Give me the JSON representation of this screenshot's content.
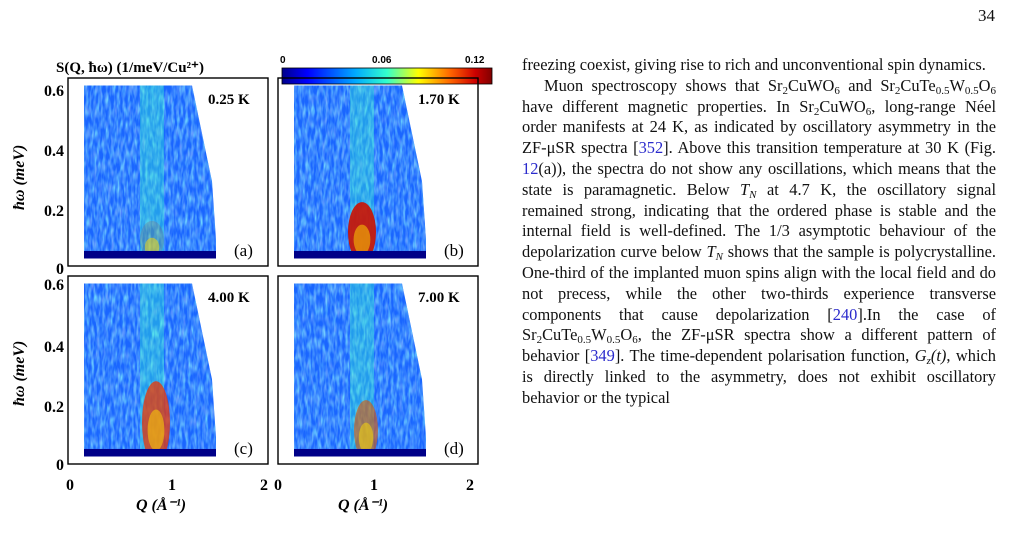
{
  "page_number": "34",
  "figure": {
    "title": "S(Q, ħω) (1/meV/Cu²⁺)",
    "colorbar": {
      "ticks": [
        "0",
        "0.06",
        "0.12"
      ],
      "colors": [
        "#00008b",
        "#0000ff",
        "#00aaff",
        "#33ffcc",
        "#ffff00",
        "#ff6600",
        "#cc0000",
        "#800000"
      ]
    },
    "y_axis_label": "ħω (meV)",
    "x_axis_label": "Q (Å⁻¹)",
    "y_ticks": [
      "0",
      "0.2",
      "0.4",
      "0.6"
    ],
    "x_ticks": [
      "0",
      "1",
      "2"
    ],
    "panels": [
      {
        "letter": "(a)",
        "temperature": "0.25 K"
      },
      {
        "letter": "(b)",
        "temperature": "1.70 K"
      },
      {
        "letter": "(c)",
        "temperature": "4.00 K"
      },
      {
        "letter": "(d)",
        "temperature": "7.00 K"
      }
    ]
  },
  "text": {
    "p1": "freezing coexist, giving rise to rich and unconventional spin dynamics.",
    "p2_a": "Muon spectroscopy shows that Sr",
    "p2_b": "CuWO",
    "p2_c": " and Sr",
    "p2_d": "CuTe",
    "p2_e": "W",
    "p2_f": "O",
    "p2_g": " have different magnetic properties. In Sr",
    "p2_h": "CuWO",
    "p2_i": ", long-range Néel order manifests at 24 K, as indicated by oscillatory asymmetry in the ZF-μSR spectra [",
    "cite_352": "352",
    "p2_j": "]. Above this transition temperature at 30 K (Fig. ",
    "cite_fig12": "12",
    "p2_k": "(a)), the spectra do not show any oscillations, which means that the state is paramagnetic. Below ",
    "tn": "T",
    "tn_sub": "N",
    "p2_l": " at 4.7 K, the oscillatory signal remained strong, indicating that the ordered phase is stable and the internal field is well-defined. The 1/3 asymptotic behaviour of the depolarization curve below ",
    "p2_m": " shows that the sample is polycrystalline. One-third of the implanted muon spins align with the local field and do not precess, while the other two-thirds experience transverse components that cause depolarization [",
    "cite_240": "240",
    "p2_n": "].In the case of Sr",
    "p2_o": "CuTe",
    "p2_p": "W",
    "p2_q": "O",
    "p2_r": ", the ZF-μSR spectra show a different pattern of behavior [",
    "cite_349": "349",
    "p2_s": "]. The time-dependent polarisation function, ",
    "gz": "G",
    "gz_sub": "z",
    "gz_t": "(t)",
    "p2_t": ", which is directly linked to the asymmetry, does not exhibit oscillatory behavior or the typical",
    "sub_2": "2",
    "sub_6": "6",
    "sub_05": "0.5"
  }
}
